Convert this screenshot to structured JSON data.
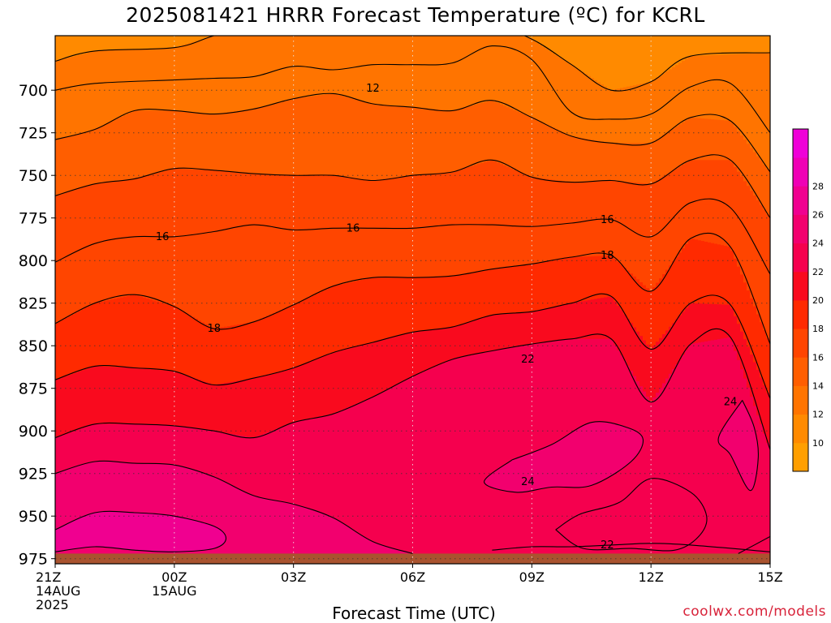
{
  "chart_data": {
    "type": "heatmap",
    "title": "2025081421 HRRR Forecast Temperature (ºC) for KCRL",
    "xlabel": "Forecast Time (UTC)",
    "ylabel": "",
    "credit": "coolwx.com/models",
    "x_ticks": [
      {
        "hour": 0,
        "lines": [
          "21Z",
          "14AUG",
          "2025"
        ]
      },
      {
        "hour": 3,
        "lines": [
          "00Z",
          "15AUG"
        ]
      },
      {
        "hour": 6,
        "lines": [
          "03Z"
        ]
      },
      {
        "hour": 9,
        "lines": [
          "06Z"
        ]
      },
      {
        "hour": 12,
        "lines": [
          "09Z"
        ]
      },
      {
        "hour": 15,
        "lines": [
          "12Z"
        ]
      },
      {
        "hour": 18,
        "lines": [
          "15Z"
        ]
      }
    ],
    "y_ticks": [
      700,
      725,
      750,
      775,
      800,
      825,
      850,
      875,
      900,
      925,
      950,
      975
    ],
    "xlim": [
      0,
      18
    ],
    "ylim": [
      978,
      668
    ],
    "colorbar": {
      "levels": [
        8,
        10,
        12,
        14,
        16,
        18,
        20,
        22,
        24,
        26,
        28,
        30
      ],
      "labels": [
        "10",
        "12",
        "14",
        "16",
        "18",
        "20",
        "22",
        "24",
        "26",
        "28"
      ],
      "colors": [
        "#ff9f00",
        "#ff8a00",
        "#ff7400",
        "#ff5e00",
        "#ff4500",
        "#ff2a00",
        "#f90a1e",
        "#f5004e",
        "#f2006e",
        "#f00090",
        "#ef00b5",
        "#ef00d8"
      ]
    },
    "ground": {
      "top_pressure": 972,
      "color": "#a9532f"
    },
    "contours": [
      {
        "level": 12,
        "points": [
          [
            0,
            683
          ],
          [
            1,
            677
          ],
          [
            3,
            675
          ],
          [
            4,
            668
          ],
          [
            5,
            663
          ],
          [
            7,
            665
          ],
          [
            9,
            663
          ],
          [
            11,
            663
          ],
          [
            12,
            670
          ],
          [
            13,
            685
          ],
          [
            14,
            700
          ],
          [
            15,
            695
          ],
          [
            16,
            680
          ],
          [
            18,
            678
          ]
        ]
      },
      {
        "level": 12,
        "points": [
          [
            0,
            700
          ],
          [
            1,
            696
          ],
          [
            3,
            694
          ],
          [
            4,
            693
          ],
          [
            5,
            692
          ],
          [
            6,
            686
          ],
          [
            7,
            688
          ],
          [
            8,
            685
          ],
          [
            9,
            685
          ],
          [
            10,
            684
          ],
          [
            11,
            674
          ],
          [
            12,
            682
          ],
          [
            13,
            713
          ],
          [
            14,
            717
          ],
          [
            15,
            714
          ],
          [
            16,
            698
          ],
          [
            17,
            696
          ],
          [
            18,
            725
          ]
        ]
      },
      {
        "level": 14,
        "points": [
          [
            0,
            729
          ],
          [
            1,
            723
          ],
          [
            2,
            712
          ],
          [
            3,
            712
          ],
          [
            4,
            714
          ],
          [
            5,
            711
          ],
          [
            6,
            705
          ],
          [
            7,
            702
          ],
          [
            8,
            708
          ],
          [
            9,
            710
          ],
          [
            10,
            712
          ],
          [
            11,
            706
          ],
          [
            12,
            716
          ],
          [
            13,
            727
          ],
          [
            14,
            731
          ],
          [
            15,
            731
          ],
          [
            16,
            716
          ],
          [
            17,
            718
          ],
          [
            18,
            748
          ]
        ]
      },
      {
        "level": 16,
        "points": [
          [
            0,
            762
          ],
          [
            1,
            755
          ],
          [
            2,
            752
          ],
          [
            3,
            746
          ],
          [
            4,
            747
          ],
          [
            5,
            749
          ],
          [
            6,
            750
          ],
          [
            7,
            750
          ],
          [
            8,
            753
          ],
          [
            9,
            750
          ],
          [
            10,
            748
          ],
          [
            11,
            741
          ],
          [
            12,
            751
          ],
          [
            13,
            754
          ],
          [
            14,
            753
          ],
          [
            15,
            755
          ],
          [
            16,
            741
          ],
          [
            17,
            741
          ],
          [
            18,
            775
          ]
        ]
      },
      {
        "level": 16,
        "points": [
          [
            0,
            801
          ],
          [
            1,
            790
          ],
          [
            2,
            786
          ],
          [
            3,
            786
          ],
          [
            4,
            783
          ],
          [
            5,
            779
          ],
          [
            6,
            782
          ],
          [
            7,
            781
          ],
          [
            8,
            781
          ],
          [
            9,
            781
          ],
          [
            10,
            779
          ],
          [
            11,
            779
          ],
          [
            12,
            780
          ],
          [
            13,
            778
          ],
          [
            14,
            776
          ],
          [
            15,
            786
          ],
          [
            16,
            766
          ],
          [
            17,
            769
          ],
          [
            18,
            808
          ]
        ]
      },
      {
        "level": 18,
        "points": [
          [
            0,
            837
          ],
          [
            1,
            825
          ],
          [
            2,
            820
          ],
          [
            3,
            827
          ],
          [
            4,
            840
          ],
          [
            5,
            836
          ],
          [
            6,
            826
          ],
          [
            7,
            815
          ],
          [
            8,
            810
          ],
          [
            9,
            810
          ],
          [
            10,
            809
          ],
          [
            11,
            805
          ],
          [
            12,
            802
          ],
          [
            13,
            798
          ],
          [
            14,
            797
          ],
          [
            15,
            818
          ],
          [
            16,
            787
          ],
          [
            17,
            792
          ],
          [
            18,
            849
          ]
        ]
      },
      {
        "level": 20,
        "points": [
          [
            0,
            870
          ],
          [
            1,
            862
          ],
          [
            2,
            863
          ],
          [
            3,
            865
          ],
          [
            4,
            873
          ],
          [
            5,
            869
          ],
          [
            6,
            863
          ],
          [
            7,
            854
          ],
          [
            8,
            848
          ],
          [
            9,
            842
          ],
          [
            10,
            839
          ],
          [
            11,
            832
          ],
          [
            12,
            830
          ],
          [
            13,
            825
          ],
          [
            14,
            821
          ],
          [
            15,
            852
          ],
          [
            16,
            825
          ],
          [
            17,
            826
          ],
          [
            18,
            881
          ]
        ]
      },
      {
        "level": 22,
        "points": [
          [
            0,
            904
          ],
          [
            1,
            896
          ],
          [
            2,
            896
          ],
          [
            3,
            897
          ],
          [
            4,
            900
          ],
          [
            5,
            904
          ],
          [
            6,
            895
          ],
          [
            7,
            890
          ],
          [
            8,
            880
          ],
          [
            9,
            868
          ],
          [
            10,
            858
          ],
          [
            11,
            853
          ],
          [
            12,
            849
          ],
          [
            13,
            846
          ],
          [
            14,
            846
          ],
          [
            15,
            883
          ],
          [
            16,
            849
          ],
          [
            17,
            845
          ],
          [
            18,
            911
          ]
        ]
      },
      {
        "level": 24,
        "points": [
          [
            0,
            925
          ],
          [
            1,
            918
          ],
          [
            2,
            919
          ],
          [
            3,
            920
          ],
          [
            4,
            927
          ],
          [
            5,
            938
          ],
          [
            6,
            943
          ],
          [
            7,
            951
          ],
          [
            8,
            965
          ],
          [
            9,
            972
          ]
        ]
      },
      {
        "level": 24,
        "points": [
          [
            11.5,
            917
          ],
          [
            12.5,
            908
          ],
          [
            13.5,
            895
          ],
          [
            14.4,
            898
          ],
          [
            14.8,
            905
          ],
          [
            14.5,
            918
          ],
          [
            13.5,
            932
          ],
          [
            12.5,
            933
          ],
          [
            11.6,
            936
          ],
          [
            10.8,
            930
          ],
          [
            11.5,
            917
          ]
        ]
      },
      {
        "level": 24,
        "points": [
          [
            17.3,
            882
          ],
          [
            17.6,
            898
          ],
          [
            17.7,
            916
          ],
          [
            17.5,
            935
          ],
          [
            17,
            914
          ],
          [
            16.7,
            904
          ],
          [
            17.3,
            882
          ]
        ]
      },
      {
        "level": 26,
        "points": [
          [
            0,
            958
          ],
          [
            1,
            948
          ],
          [
            2,
            948
          ],
          [
            3,
            950
          ],
          [
            4,
            956
          ],
          [
            4.3,
            963
          ],
          [
            4,
            969
          ],
          [
            3,
            971
          ],
          [
            2,
            970
          ],
          [
            1,
            968
          ],
          [
            0,
            971
          ]
        ]
      },
      {
        "level": 22,
        "points": [
          [
            11,
            970
          ],
          [
            12,
            968
          ],
          [
            13,
            968
          ],
          [
            14,
            967
          ],
          [
            15,
            966
          ],
          [
            16,
            967
          ],
          [
            18,
            971
          ]
        ]
      },
      {
        "level": 22,
        "points": [
          [
            12.6,
            958
          ],
          [
            13.2,
            949
          ],
          [
            14.2,
            942
          ],
          [
            15,
            928
          ],
          [
            16,
            936
          ],
          [
            16.4,
            950
          ],
          [
            16.2,
            962
          ],
          [
            15.6,
            970
          ],
          [
            14.5,
            969
          ],
          [
            13.3,
            969
          ],
          [
            12.6,
            958
          ]
        ]
      },
      {
        "level": 22,
        "points": [
          [
            17.2,
            972
          ],
          [
            18,
            962
          ]
        ]
      }
    ],
    "contour_labels": [
      {
        "text": "12",
        "x": 8.0,
        "p": 699
      },
      {
        "text": "16",
        "x": 2.7,
        "p": 786
      },
      {
        "text": "16",
        "x": 7.5,
        "p": 781
      },
      {
        "text": "16",
        "x": 13.9,
        "p": 776
      },
      {
        "text": "18",
        "x": 4.0,
        "p": 840
      },
      {
        "text": "18",
        "x": 13.9,
        "p": 797
      },
      {
        "text": "22",
        "x": 11.9,
        "p": 858
      },
      {
        "text": "24",
        "x": 11.9,
        "p": 930
      },
      {
        "text": "24",
        "x": 17.0,
        "p": 883
      },
      {
        "text": "22",
        "x": 13.9,
        "p": 967
      }
    ]
  }
}
